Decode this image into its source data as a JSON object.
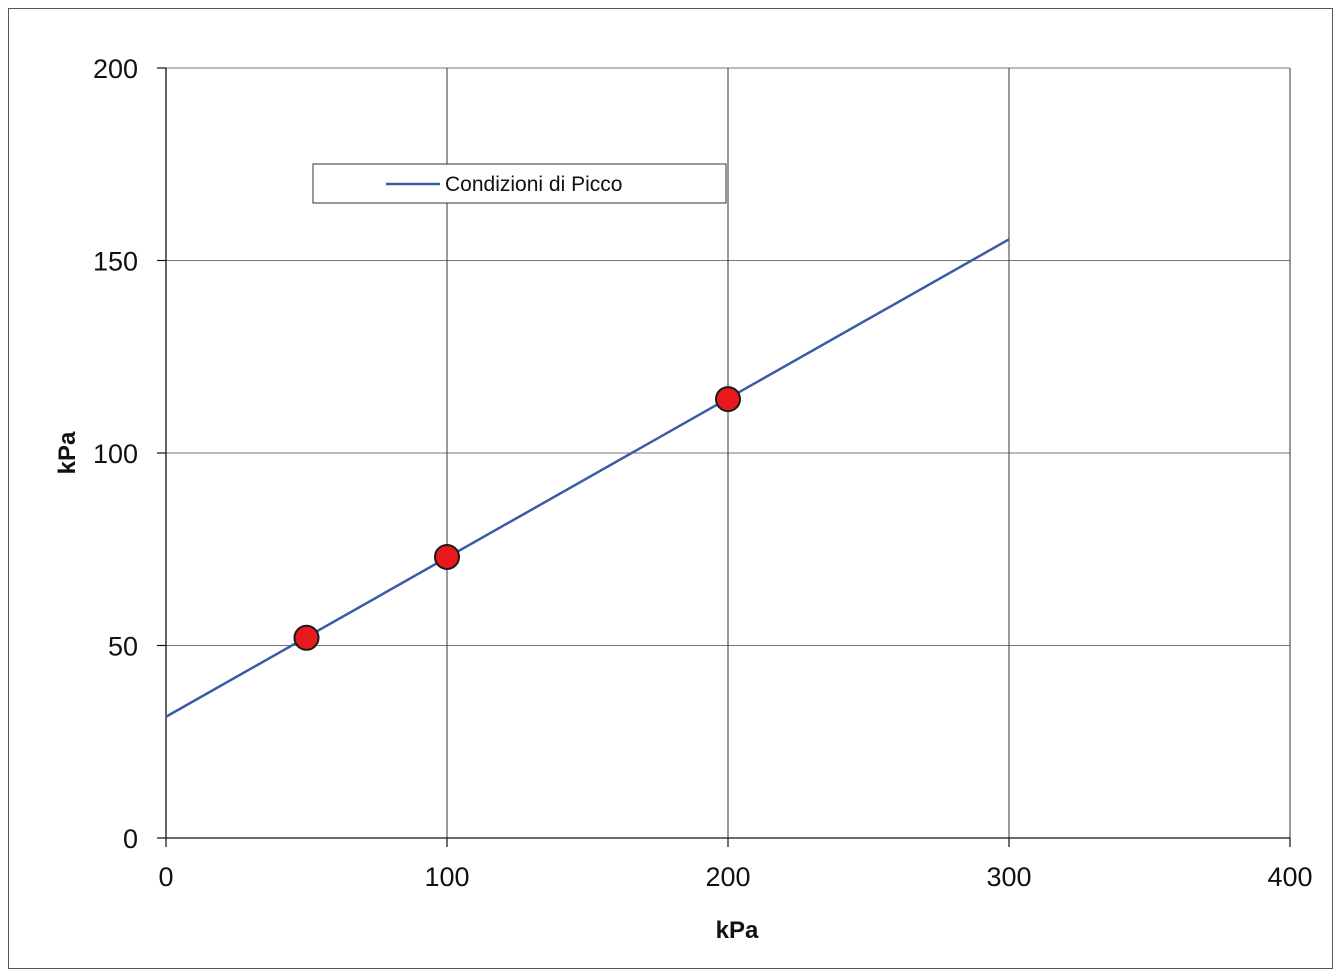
{
  "chart_data": {
    "type": "scatter",
    "xlabel": "kPa",
    "ylabel": "kPa",
    "xlim": [
      0,
      400
    ],
    "ylim": [
      0,
      200
    ],
    "x_ticks": [
      "0",
      "100",
      "200",
      "300",
      "400"
    ],
    "y_ticks": [
      "0",
      "50",
      "100",
      "150",
      "200"
    ],
    "grid": true,
    "legend_position": "top-left",
    "points": {
      "x": [
        50,
        100,
        200
      ],
      "y": [
        52,
        73,
        114
      ],
      "color": "#e8191c"
    },
    "series": [
      {
        "name": "Condizioni di Picco",
        "type": "line",
        "x": [
          0,
          300
        ],
        "y": [
          31.5,
          155.5
        ],
        "color": "#3c5aa8"
      }
    ]
  }
}
